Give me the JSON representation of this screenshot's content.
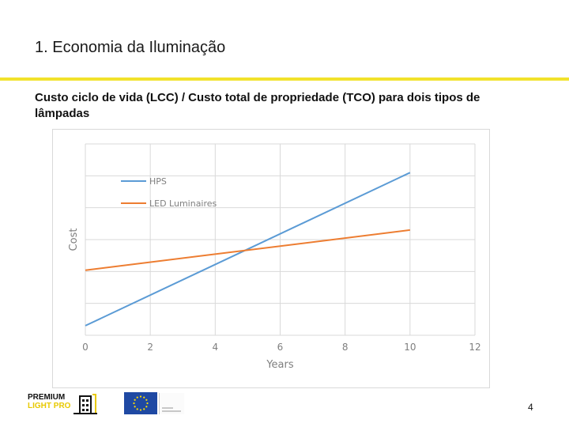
{
  "slide": {
    "title": "1. Economia da Iluminação",
    "subtitle": "Custo ciclo de vida (LCC) / Custo total de propriedade (TCO) para dois tipos de lâmpadas",
    "page_number": "4",
    "accent_color": "#f2e22b"
  },
  "footer": {
    "logo_line1": "PREMIUM",
    "logo_line2": "LIGHT PRO"
  },
  "chart_data": {
    "type": "line",
    "title": "",
    "xlabel": "Years",
    "ylabel": "Cost",
    "x_ticks": [
      0,
      2,
      4,
      6,
      8,
      10,
      12
    ],
    "xlim": [
      0,
      12
    ],
    "ylim": [
      0,
      10
    ],
    "y_tick_labels_shown": false,
    "grid": true,
    "legend_position": "top-left",
    "series": [
      {
        "name": "HPS",
        "color": "#5b9bd5",
        "x": [
          0,
          10
        ],
        "y": [
          0.5,
          8.5
        ]
      },
      {
        "name": "LED Luminaires",
        "color": "#ed7d31",
        "x": [
          0,
          10
        ],
        "y": [
          3.4,
          5.5
        ]
      }
    ]
  }
}
